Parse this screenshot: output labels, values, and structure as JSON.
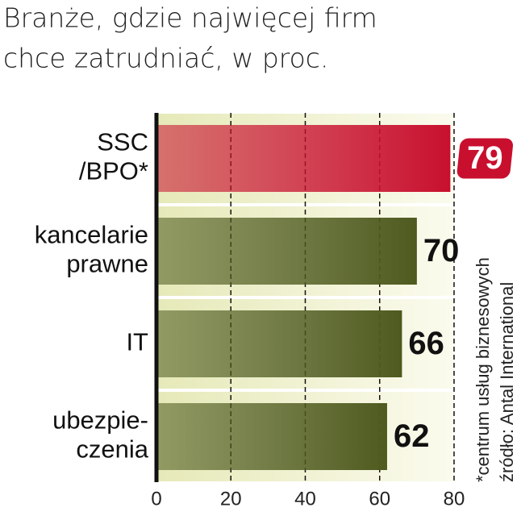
{
  "chart_data": {
    "type": "barh",
    "title": [
      "Branże, gdzie najwięcej firm",
      "chce zatrudniać, w proc."
    ],
    "categories": [
      [
        "SSC",
        "/BPO*"
      ],
      [
        "kancelarie",
        "prawne"
      ],
      [
        "IT"
      ],
      [
        "ubezpie-",
        "czenia"
      ]
    ],
    "values": [
      79,
      70,
      66,
      62
    ],
    "colors": [
      "#c8102e",
      "#4e5a1e",
      "#4e5a1e",
      "#4e5a1e"
    ],
    "xlim": [
      0,
      80
    ],
    "xticks": [
      0,
      20,
      40,
      60,
      80
    ],
    "grid": true,
    "notes": [
      "*centrum usług biznesowych",
      "źródło: Antal International"
    ]
  }
}
